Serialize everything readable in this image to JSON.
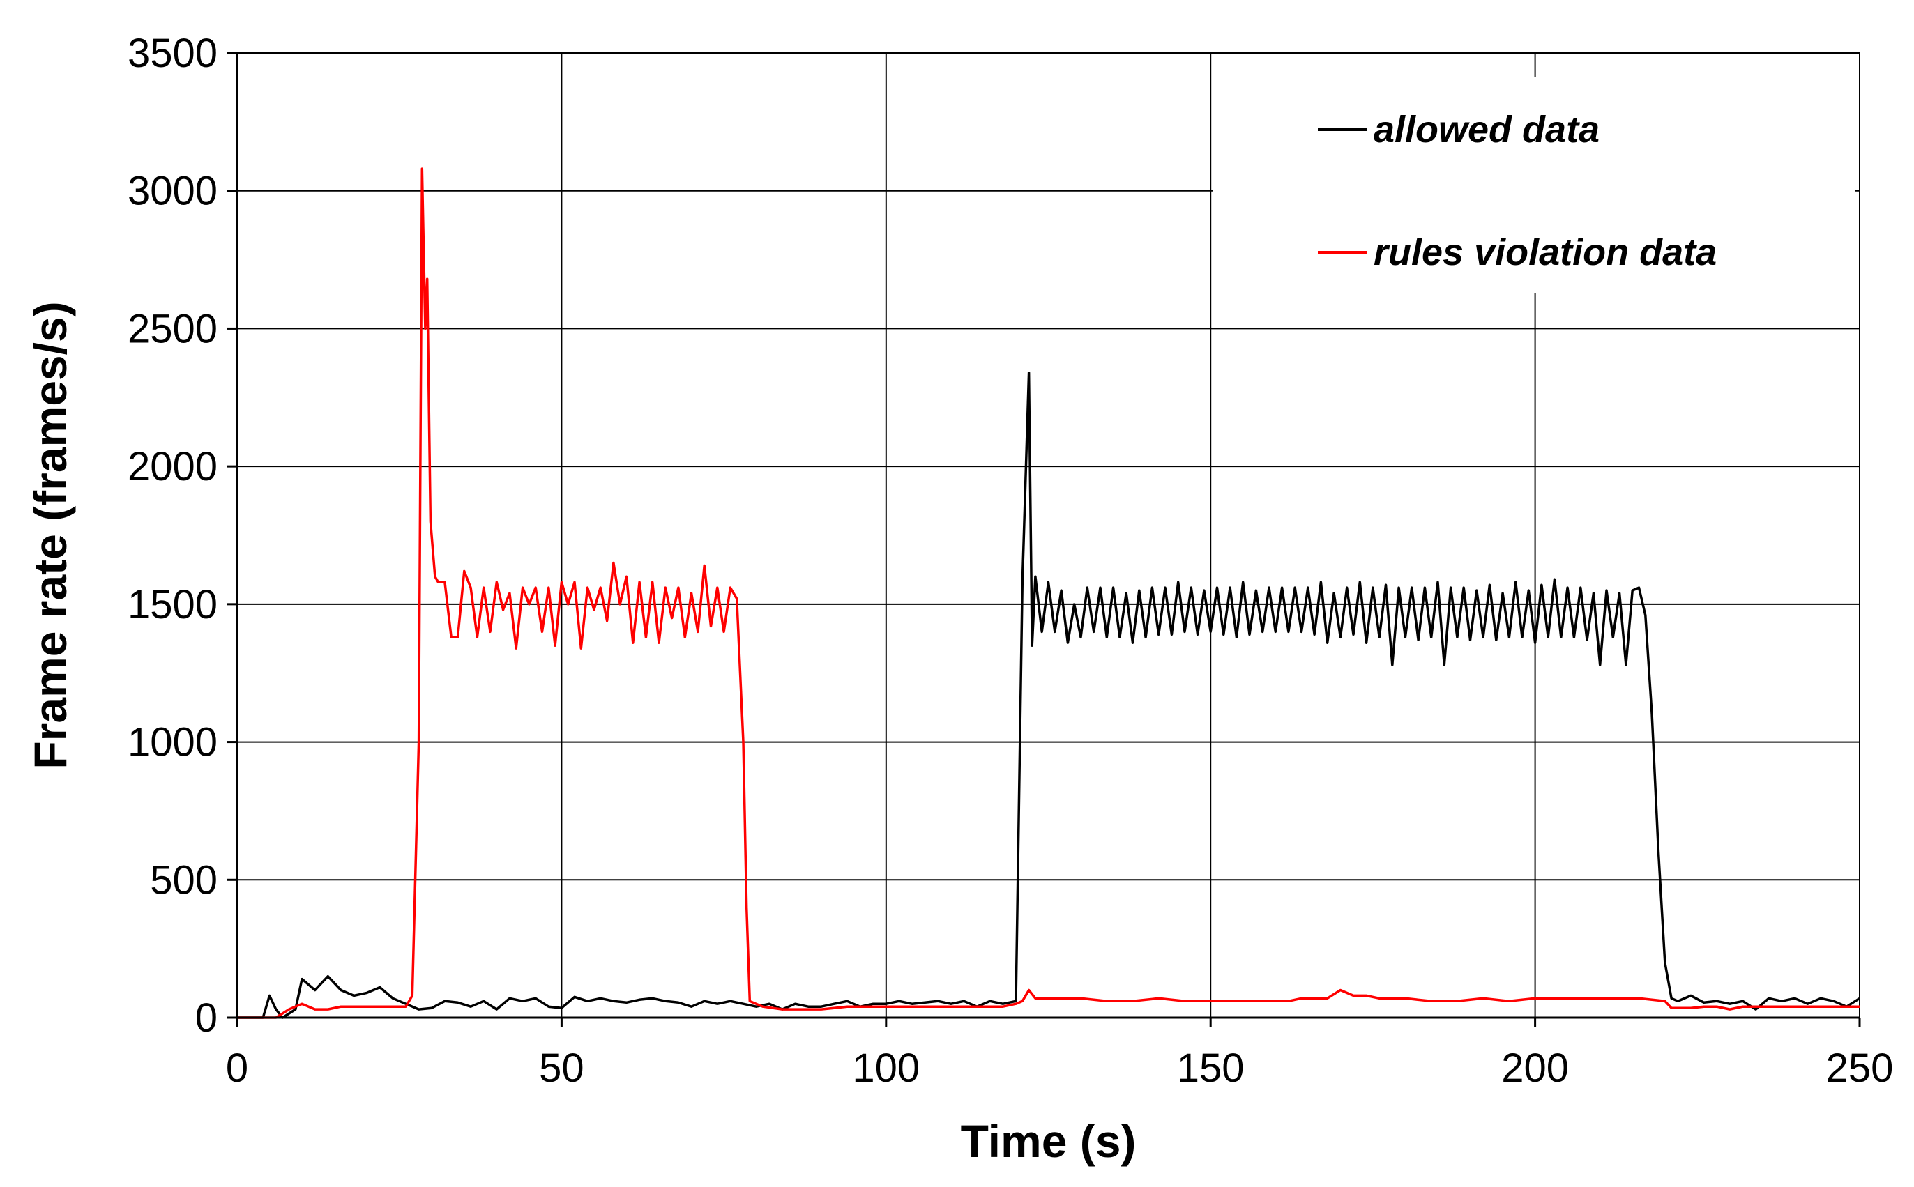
{
  "chart_data": {
    "type": "line",
    "title": "",
    "xlabel": "Time (s)",
    "ylabel": "Frame rate (frames/s)",
    "xlim": [
      0,
      250
    ],
    "ylim": [
      0,
      3500
    ],
    "xticks": [
      0,
      50,
      100,
      150,
      200,
      250
    ],
    "yticks": [
      0,
      500,
      1000,
      1500,
      2000,
      2500,
      3000,
      3500
    ],
    "xtick_labels": [
      "0",
      "50",
      "100",
      "150",
      "200",
      "250"
    ],
    "ytick_labels": [
      "0",
      "500",
      "1000",
      "1500",
      "2000",
      "2500",
      "3000",
      "3500"
    ],
    "grid": true,
    "legend_position": "top-right",
    "series": [
      {
        "name": "allowed data",
        "color": "#000000",
        "points": [
          [
            0,
            0
          ],
          [
            4,
            0
          ],
          [
            5,
            80
          ],
          [
            6,
            30
          ],
          [
            7,
            0
          ],
          [
            9,
            30
          ],
          [
            10,
            140
          ],
          [
            12,
            100
          ],
          [
            14,
            150
          ],
          [
            16,
            100
          ],
          [
            18,
            80
          ],
          [
            20,
            90
          ],
          [
            22,
            110
          ],
          [
            24,
            70
          ],
          [
            26,
            50
          ],
          [
            28,
            30
          ],
          [
            30,
            35
          ],
          [
            32,
            60
          ],
          [
            34,
            55
          ],
          [
            36,
            40
          ],
          [
            38,
            60
          ],
          [
            40,
            30
          ],
          [
            42,
            70
          ],
          [
            44,
            60
          ],
          [
            46,
            70
          ],
          [
            48,
            40
          ],
          [
            50,
            35
          ],
          [
            52,
            75
          ],
          [
            54,
            60
          ],
          [
            56,
            70
          ],
          [
            58,
            60
          ],
          [
            60,
            55
          ],
          [
            62,
            65
          ],
          [
            64,
            70
          ],
          [
            66,
            60
          ],
          [
            68,
            55
          ],
          [
            70,
            40
          ],
          [
            72,
            60
          ],
          [
            74,
            50
          ],
          [
            76,
            60
          ],
          [
            78,
            50
          ],
          [
            80,
            40
          ],
          [
            82,
            50
          ],
          [
            84,
            30
          ],
          [
            86,
            50
          ],
          [
            88,
            40
          ],
          [
            90,
            40
          ],
          [
            92,
            50
          ],
          [
            94,
            60
          ],
          [
            96,
            40
          ],
          [
            98,
            50
          ],
          [
            100,
            50
          ],
          [
            102,
            60
          ],
          [
            104,
            50
          ],
          [
            106,
            55
          ],
          [
            108,
            60
          ],
          [
            110,
            50
          ],
          [
            112,
            60
          ],
          [
            114,
            40
          ],
          [
            116,
            60
          ],
          [
            118,
            50
          ],
          [
            120,
            60
          ],
          [
            121,
            1580
          ],
          [
            122,
            2340
          ],
          [
            122.5,
            1350
          ],
          [
            123,
            1600
          ],
          [
            124,
            1400
          ],
          [
            125,
            1580
          ],
          [
            126,
            1400
          ],
          [
            127,
            1550
          ],
          [
            128,
            1360
          ],
          [
            129,
            1500
          ],
          [
            130,
            1380
          ],
          [
            131,
            1560
          ],
          [
            132,
            1400
          ],
          [
            133,
            1560
          ],
          [
            134,
            1380
          ],
          [
            135,
            1560
          ],
          [
            136,
            1380
          ],
          [
            137,
            1540
          ],
          [
            138,
            1360
          ],
          [
            139,
            1550
          ],
          [
            140,
            1380
          ],
          [
            141,
            1560
          ],
          [
            142,
            1390
          ],
          [
            143,
            1560
          ],
          [
            144,
            1390
          ],
          [
            145,
            1580
          ],
          [
            146,
            1400
          ],
          [
            147,
            1560
          ],
          [
            148,
            1390
          ],
          [
            149,
            1550
          ],
          [
            150,
            1400
          ],
          [
            151,
            1560
          ],
          [
            152,
            1390
          ],
          [
            153,
            1560
          ],
          [
            154,
            1380
          ],
          [
            155,
            1580
          ],
          [
            156,
            1390
          ],
          [
            157,
            1550
          ],
          [
            158,
            1400
          ],
          [
            159,
            1560
          ],
          [
            160,
            1400
          ],
          [
            161,
            1560
          ],
          [
            162,
            1400
          ],
          [
            163,
            1560
          ],
          [
            164,
            1400
          ],
          [
            165,
            1560
          ],
          [
            166,
            1390
          ],
          [
            167,
            1580
          ],
          [
            168,
            1360
          ],
          [
            169,
            1540
          ],
          [
            170,
            1380
          ],
          [
            171,
            1560
          ],
          [
            172,
            1390
          ],
          [
            173,
            1580
          ],
          [
            174,
            1360
          ],
          [
            175,
            1560
          ],
          [
            176,
            1380
          ],
          [
            177,
            1570
          ],
          [
            178,
            1280
          ],
          [
            179,
            1560
          ],
          [
            180,
            1380
          ],
          [
            181,
            1560
          ],
          [
            182,
            1370
          ],
          [
            183,
            1560
          ],
          [
            184,
            1380
          ],
          [
            185,
            1580
          ],
          [
            186,
            1280
          ],
          [
            187,
            1560
          ],
          [
            188,
            1380
          ],
          [
            189,
            1560
          ],
          [
            190,
            1370
          ],
          [
            191,
            1550
          ],
          [
            192,
            1380
          ],
          [
            193,
            1570
          ],
          [
            194,
            1370
          ],
          [
            195,
            1540
          ],
          [
            196,
            1380
          ],
          [
            197,
            1580
          ],
          [
            198,
            1380
          ],
          [
            199,
            1550
          ],
          [
            200,
            1360
          ],
          [
            201,
            1570
          ],
          [
            202,
            1380
          ],
          [
            203,
            1590
          ],
          [
            204,
            1380
          ],
          [
            205,
            1560
          ],
          [
            206,
            1380
          ],
          [
            207,
            1560
          ],
          [
            208,
            1370
          ],
          [
            209,
            1540
          ],
          [
            210,
            1280
          ],
          [
            211,
            1550
          ],
          [
            212,
            1380
          ],
          [
            213,
            1540
          ],
          [
            214,
            1280
          ],
          [
            215,
            1550
          ],
          [
            216,
            1560
          ],
          [
            217,
            1460
          ],
          [
            218,
            1100
          ],
          [
            219,
            600
          ],
          [
            220,
            200
          ],
          [
            221,
            70
          ],
          [
            222,
            60
          ],
          [
            224,
            80
          ],
          [
            226,
            55
          ],
          [
            228,
            60
          ],
          [
            230,
            50
          ],
          [
            232,
            60
          ],
          [
            234,
            30
          ],
          [
            236,
            70
          ],
          [
            238,
            60
          ],
          [
            240,
            70
          ],
          [
            242,
            50
          ],
          [
            244,
            70
          ],
          [
            246,
            60
          ],
          [
            248,
            40
          ],
          [
            250,
            70
          ]
        ]
      },
      {
        "name": "rules violation data",
        "color": "#ff0000",
        "points": [
          [
            0,
            0
          ],
          [
            6,
            0
          ],
          [
            8,
            30
          ],
          [
            10,
            50
          ],
          [
            12,
            30
          ],
          [
            14,
            30
          ],
          [
            16,
            40
          ],
          [
            18,
            40
          ],
          [
            20,
            40
          ],
          [
            22,
            40
          ],
          [
            24,
            40
          ],
          [
            26,
            40
          ],
          [
            27,
            80
          ],
          [
            28,
            1000
          ],
          [
            28.5,
            3080
          ],
          [
            29,
            2500
          ],
          [
            29.3,
            2680
          ],
          [
            29.8,
            1800
          ],
          [
            30.5,
            1600
          ],
          [
            31,
            1580
          ],
          [
            32,
            1580
          ],
          [
            33,
            1380
          ],
          [
            34,
            1380
          ],
          [
            35,
            1620
          ],
          [
            36,
            1560
          ],
          [
            37,
            1380
          ],
          [
            38,
            1560
          ],
          [
            39,
            1400
          ],
          [
            40,
            1580
          ],
          [
            41,
            1480
          ],
          [
            42,
            1540
          ],
          [
            43,
            1340
          ],
          [
            44,
            1560
          ],
          [
            45,
            1500
          ],
          [
            46,
            1560
          ],
          [
            47,
            1400
          ],
          [
            48,
            1560
          ],
          [
            49,
            1350
          ],
          [
            50,
            1580
          ],
          [
            51,
            1500
          ],
          [
            52,
            1580
          ],
          [
            53,
            1340
          ],
          [
            54,
            1560
          ],
          [
            55,
            1480
          ],
          [
            56,
            1560
          ],
          [
            57,
            1440
          ],
          [
            58,
            1650
          ],
          [
            59,
            1500
          ],
          [
            60,
            1600
          ],
          [
            61,
            1360
          ],
          [
            62,
            1580
          ],
          [
            63,
            1380
          ],
          [
            64,
            1580
          ],
          [
            65,
            1360
          ],
          [
            66,
            1560
          ],
          [
            67,
            1450
          ],
          [
            68,
            1560
          ],
          [
            69,
            1380
          ],
          [
            70,
            1540
          ],
          [
            71,
            1400
          ],
          [
            72,
            1640
          ],
          [
            73,
            1420
          ],
          [
            74,
            1560
          ],
          [
            75,
            1400
          ],
          [
            76,
            1560
          ],
          [
            77,
            1520
          ],
          [
            78,
            1000
          ],
          [
            78.5,
            400
          ],
          [
            79,
            60
          ],
          [
            81,
            40
          ],
          [
            84,
            30
          ],
          [
            86,
            30
          ],
          [
            88,
            30
          ],
          [
            90,
            30
          ],
          [
            92,
            35
          ],
          [
            94,
            40
          ],
          [
            96,
            40
          ],
          [
            98,
            40
          ],
          [
            100,
            40
          ],
          [
            102,
            40
          ],
          [
            104,
            40
          ],
          [
            106,
            40
          ],
          [
            108,
            40
          ],
          [
            110,
            40
          ],
          [
            112,
            40
          ],
          [
            114,
            40
          ],
          [
            116,
            40
          ],
          [
            118,
            40
          ],
          [
            120,
            50
          ],
          [
            121,
            60
          ],
          [
            122,
            100
          ],
          [
            123,
            70
          ],
          [
            126,
            70
          ],
          [
            130,
            70
          ],
          [
            134,
            60
          ],
          [
            138,
            60
          ],
          [
            142,
            70
          ],
          [
            146,
            60
          ],
          [
            150,
            60
          ],
          [
            154,
            60
          ],
          [
            158,
            60
          ],
          [
            162,
            60
          ],
          [
            164,
            70
          ],
          [
            166,
            70
          ],
          [
            168,
            70
          ],
          [
            170,
            100
          ],
          [
            172,
            80
          ],
          [
            174,
            80
          ],
          [
            176,
            70
          ],
          [
            178,
            70
          ],
          [
            180,
            70
          ],
          [
            184,
            60
          ],
          [
            188,
            60
          ],
          [
            192,
            70
          ],
          [
            196,
            60
          ],
          [
            200,
            70
          ],
          [
            204,
            70
          ],
          [
            208,
            70
          ],
          [
            212,
            70
          ],
          [
            216,
            70
          ],
          [
            218,
            65
          ],
          [
            220,
            60
          ],
          [
            221,
            35
          ],
          [
            224,
            35
          ],
          [
            226,
            40
          ],
          [
            228,
            40
          ],
          [
            230,
            30
          ],
          [
            232,
            40
          ],
          [
            236,
            40
          ],
          [
            240,
            40
          ],
          [
            244,
            40
          ],
          [
            248,
            40
          ],
          [
            250,
            40
          ]
        ]
      }
    ]
  }
}
